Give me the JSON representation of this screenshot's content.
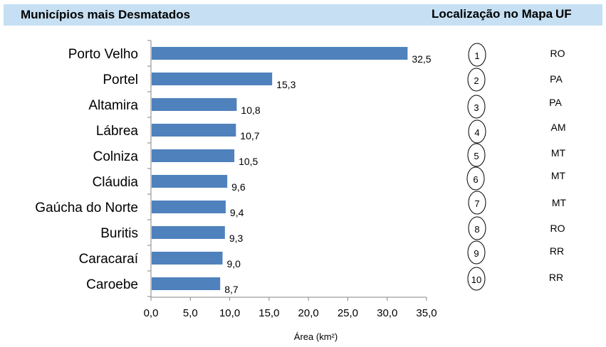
{
  "header": {
    "title": "Municípios mais Desmatados",
    "map_label": "Localização no Mapa",
    "uf_label": "UF"
  },
  "chart_data": {
    "type": "bar",
    "orientation": "horizontal",
    "categories": [
      "Porto Velho",
      "Portel",
      "Altamira",
      "Lábrea",
      "Colniza",
      "Cláudia",
      "Gaúcha do Norte",
      "Buritis",
      "Caracaraí",
      "Caroebe"
    ],
    "values": [
      32.5,
      15.3,
      10.8,
      10.7,
      10.5,
      9.6,
      9.4,
      9.3,
      9.0,
      8.7
    ],
    "value_labels": [
      "32,5",
      "15,3",
      "10,8",
      "10,7",
      "10,5",
      "9,6",
      "9,4",
      "9,3",
      "9,0",
      "8,7"
    ],
    "xlim": [
      0,
      35
    ],
    "xticks": [
      0,
      5,
      10,
      15,
      20,
      25,
      30,
      35
    ],
    "xtick_labels": [
      "0,0",
      "5,0",
      "10,0",
      "15,0",
      "20,0",
      "25,0",
      "30,0",
      "35,0"
    ],
    "xlabel": "Área (km²)",
    "bar_color": "#4f81bd",
    "grid": false
  },
  "map_list": {
    "numbers": [
      "1",
      "2",
      "3",
      "4",
      "5",
      "6",
      "7",
      "8",
      "9",
      "10"
    ],
    "uf": [
      "RO",
      "PA",
      "PA",
      "AM",
      "MT",
      "MT",
      "MT",
      "RO",
      "RR",
      "RR"
    ]
  }
}
